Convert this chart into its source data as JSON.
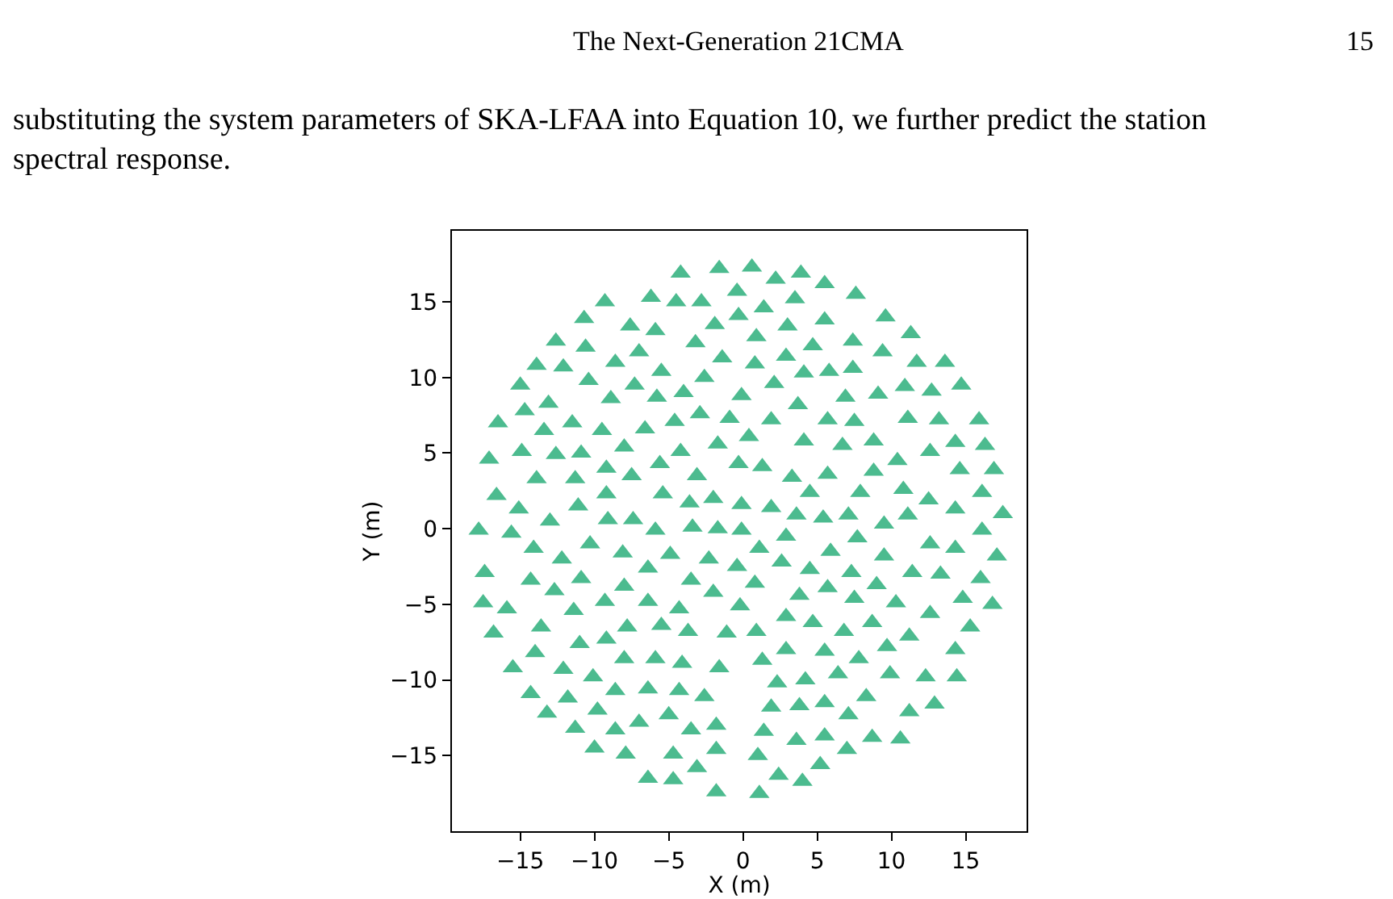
{
  "chart_data": {
    "type": "scatter",
    "xlabel": "X (m)",
    "ylabel": "Y (m)",
    "annotations": [
      "The Next-Generation 21CMA",
      "15",
      "substituting the system parameters of SKA-LFAA into Equation 10, we further predict the station spectral response."
    ],
    "xlim": [
      -19.6,
      19.1
    ],
    "ylim": [
      -20.0,
      19.7
    ],
    "xticks": [
      -15,
      -10,
      -5,
      0,
      5,
      10,
      15
    ],
    "yticks": [
      -15,
      -10,
      -5,
      0,
      5,
      10,
      15
    ],
    "marker": "triangle",
    "series": [
      {
        "color": "#4cbb8f",
        "x": [
          0.6,
          2.2,
          3.9,
          5.5,
          7.6,
          -0.4,
          3.5,
          1.4,
          -0.3,
          5.5,
          9.6,
          3.0,
          11.3,
          0.9,
          4.7,
          7.4,
          9.4,
          2.9,
          11.7,
          13.6,
          0.8,
          4.1,
          5.8,
          7.4,
          2.1,
          10.9,
          12.7,
          14.7,
          -0.1,
          3.7,
          6.9,
          9.1,
          1.9,
          5.7,
          7.5,
          11.1,
          13.2,
          15.9,
          0.4,
          4.1,
          6.7,
          8.8,
          12.6,
          14.3,
          16.3,
          -0.3,
          1.3,
          3.3,
          5.7,
          8.8,
          10.4,
          14.6,
          16.9,
          4.5,
          7.9,
          10.8,
          12.5,
          14.3,
          16.1,
          17.5,
          -0.1,
          1.9,
          3.6,
          5.4,
          7.1,
          11.1,
          9.5,
          -0.1,
          2.9,
          7.7,
          16.1,
          12.6,
          14.3,
          17.1,
          1.1,
          2.6,
          5.9,
          9.5,
          -0.4,
          0.8,
          4.5,
          7.3,
          11.4,
          13.3,
          16.0,
          9.0,
          -0.2,
          3.8,
          5.7,
          7.5,
          10.3,
          14.8,
          16.8,
          2.9,
          4.7,
          8.7,
          12.6,
          15.3,
          0.9,
          6.8,
          11.2,
          9.7,
          2.9,
          5.5,
          7.8,
          14.3,
          1.3,
          6.4,
          9.9,
          12.3,
          14.4,
          2.3,
          4.2,
          8.3,
          1.9,
          3.8,
          5.5,
          11.2,
          12.9,
          7.1,
          1.4,
          3.6,
          5.5,
          8.7,
          10.6,
          1.0,
          5.2,
          7.0,
          2.4,
          4.0,
          1.1,
          -4.2,
          -1.6,
          -9.3,
          -6.2,
          -4.5,
          -2.8,
          -10.7,
          -7.6,
          -5.9,
          -1.9,
          -12.6,
          -10.6,
          -7.0,
          -3.2,
          -1.4,
          -13.9,
          -12.1,
          -8.6,
          -5.5,
          -2.6,
          -15.0,
          -10.4,
          -7.3,
          -4.0,
          -5.8,
          -8.9,
          -13.1,
          -14.7,
          -16.5,
          -13.4,
          -11.5,
          -9.5,
          -6.6,
          -4.6,
          -2.9,
          -0.9,
          -17.1,
          -14.9,
          -12.6,
          -10.9,
          -8.0,
          -5.6,
          -4.2,
          -1.7,
          -13.9,
          -11.3,
          -9.2,
          -7.5,
          -3.1,
          -16.6,
          -15.1,
          -11.1,
          -9.2,
          -5.4,
          -3.6,
          -2.0,
          -13.0,
          -9.1,
          -7.4,
          -17.8,
          -15.6,
          -5.9,
          -3.4,
          -1.7,
          -14.1,
          -10.3,
          -12.2,
          -8.1,
          -4.9,
          -2.3,
          -17.4,
          -14.3,
          -10.9,
          -12.7,
          -8.0,
          -6.4,
          -3.5,
          -2.0,
          -17.5,
          -15.9,
          -11.4,
          -9.3,
          -6.4,
          -4.3,
          -16.8,
          -13.6,
          -11.0,
          -9.2,
          -7.8,
          -5.5,
          -3.7,
          -1.1,
          -14.0,
          -15.5,
          -12.1,
          -10.1,
          -8.0,
          -5.9,
          -4.1,
          -1.6,
          -14.3,
          -11.8,
          -9.8,
          -8.6,
          -6.4,
          -4.3,
          -2.6,
          -13.2,
          -11.3,
          -8.6,
          -7.0,
          -5.0,
          -3.5,
          -1.8,
          -10.0,
          -7.9,
          -4.7,
          -1.8,
          -3.1,
          -6.4,
          -4.7,
          -1.8
        ],
        "values": [
          17.3,
          16.5,
          16.9,
          16.2,
          15.5,
          15.7,
          15.2,
          14.6,
          14.1,
          13.8,
          14.0,
          13.4,
          12.9,
          12.7,
          12.1,
          12.4,
          11.7,
          11.4,
          11.0,
          11.0,
          10.9,
          10.3,
          10.4,
          10.6,
          9.6,
          9.4,
          9.1,
          9.5,
          8.8,
          8.2,
          8.7,
          8.9,
          7.2,
          7.2,
          7.1,
          7.3,
          7.2,
          7.2,
          6.1,
          5.8,
          5.5,
          5.8,
          5.1,
          5.7,
          5.5,
          4.3,
          4.1,
          3.4,
          3.6,
          3.8,
          4.5,
          3.9,
          3.9,
          2.4,
          2.4,
          2.6,
          1.9,
          1.3,
          2.4,
          1.0,
          1.6,
          1.4,
          0.9,
          0.7,
          0.9,
          0.9,
          0.3,
          -0.1,
          -0.5,
          -0.6,
          -0.1,
          -1.0,
          -1.3,
          -1.8,
          -1.3,
          -2.2,
          -1.5,
          -1.8,
          -2.5,
          -3.6,
          -2.7,
          -2.9,
          -2.9,
          -3.0,
          -3.3,
          -3.7,
          -5.1,
          -4.4,
          -3.9,
          -4.6,
          -4.9,
          -4.6,
          -5.0,
          -5.8,
          -6.2,
          -6.2,
          -5.6,
          -6.5,
          -6.8,
          -6.8,
          -7.1,
          -7.8,
          -8.0,
          -8.1,
          -8.6,
          -8.0,
          -8.7,
          -9.6,
          -9.6,
          -9.8,
          -9.8,
          -10.2,
          -10.0,
          -11.1,
          -11.8,
          -11.7,
          -11.5,
          -12.1,
          -11.6,
          -12.3,
          -13.4,
          -14.0,
          -13.7,
          -13.8,
          -13.9,
          -15.0,
          -15.6,
          -14.6,
          -16.3,
          -16.7,
          -17.5,
          16.9,
          17.2,
          15.0,
          15.3,
          15.0,
          15.0,
          13.9,
          13.4,
          13.1,
          13.5,
          12.4,
          12.0,
          11.7,
          12.3,
          11.3,
          10.8,
          10.7,
          11.0,
          10.4,
          10.0,
          9.5,
          9.8,
          9.5,
          9.0,
          8.7,
          8.6,
          8.3,
          7.8,
          7.0,
          6.5,
          7.0,
          6.5,
          6.6,
          7.1,
          7.6,
          7.3,
          4.6,
          5.1,
          4.9,
          5.0,
          5.4,
          4.3,
          5.1,
          5.6,
          3.3,
          3.3,
          4.0,
          3.5,
          3.5,
          2.2,
          1.3,
          1.5,
          2.3,
          2.3,
          1.7,
          2.0,
          0.5,
          0.6,
          0.6,
          -0.1,
          -0.3,
          -0.1,
          0.1,
          0.0,
          -1.3,
          -1.0,
          -2.0,
          -1.6,
          -1.7,
          -2.0,
          -2.9,
          -3.4,
          -3.3,
          -4.1,
          -3.8,
          -2.6,
          -3.4,
          -4.2,
          -4.9,
          -5.3,
          -5.4,
          -4.8,
          -4.8,
          -5.3,
          -6.9,
          -6.5,
          -7.6,
          -7.3,
          -6.5,
          -6.4,
          -6.8,
          -6.9,
          -8.2,
          -9.2,
          -9.3,
          -9.8,
          -8.6,
          -8.6,
          -8.9,
          -9.2,
          -10.9,
          -11.2,
          -12.0,
          -10.7,
          -10.6,
          -10.7,
          -11.1,
          -12.2,
          -13.2,
          -13.3,
          -12.8,
          -12.3,
          -13.3,
          -13.0,
          -14.5,
          -14.9,
          -14.9,
          -14.6,
          -15.8,
          -16.5,
          -16.6,
          -17.4
        ]
      }
    ]
  }
}
